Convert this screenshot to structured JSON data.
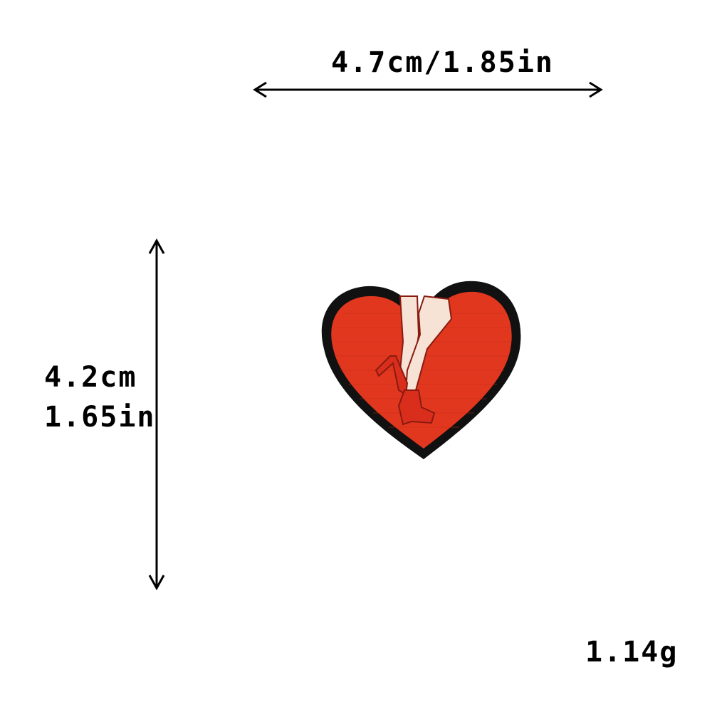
{
  "dimensions": {
    "width_text": "4.7cm/1.85in",
    "height_text_cm": "4.2cm",
    "height_text_in": "1.65in",
    "weight_text": "1.14g"
  },
  "product": {
    "icon": "heart-patch-icon",
    "colors": {
      "heart_red": "#e2371f",
      "border_black": "#111111",
      "leg_cream": "#f6e3d6",
      "shoe_red": "#d92e1c"
    }
  },
  "arrows": {
    "color": "#000000"
  }
}
